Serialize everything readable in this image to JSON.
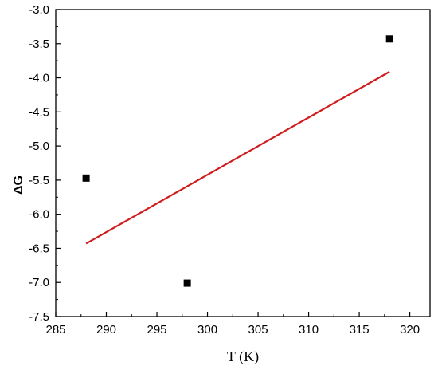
{
  "chart_data": {
    "type": "scatter",
    "title": "",
    "xlabel": "T (K)",
    "ylabel": "ΔG",
    "xlim": [
      285,
      322
    ],
    "ylim": [
      -7.5,
      -3.0
    ],
    "x_ticks": [
      285,
      290,
      295,
      300,
      305,
      310,
      315,
      320
    ],
    "y_ticks": [
      -3.0,
      -3.5,
      -4.0,
      -4.5,
      -5.0,
      -5.5,
      -6.0,
      -6.5,
      -7.0,
      -7.5
    ],
    "x_tick_labels": [
      "285",
      "290",
      "295",
      "300",
      "305",
      "310",
      "315",
      "320"
    ],
    "y_tick_labels": [
      "-3.0",
      "-3.5",
      "-4.0",
      "-4.5",
      "-5.0",
      "-5.5",
      "-6.0",
      "-6.5",
      "-7.0",
      "-7.5"
    ],
    "grid": false,
    "series": [
      {
        "kind": "scatter",
        "marker": "square",
        "color": "#000000",
        "points": [
          {
            "x": 288,
            "y": -5.47
          },
          {
            "x": 298,
            "y": -7.01
          },
          {
            "x": 318,
            "y": -3.43
          }
        ]
      },
      {
        "kind": "line",
        "color": "#d01c1c",
        "points": [
          {
            "x": 288,
            "y": -6.43
          },
          {
            "x": 318,
            "y": -3.91
          }
        ]
      }
    ]
  }
}
